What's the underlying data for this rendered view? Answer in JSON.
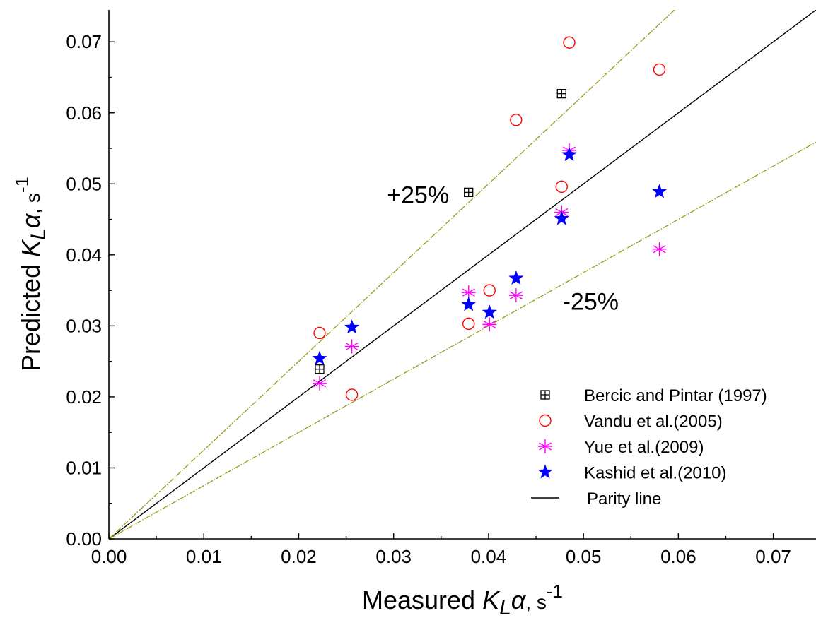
{
  "chart_data": {
    "type": "scatter",
    "title": "",
    "xlabel": {
      "prefix": "Measured ",
      "symbol": "K",
      "subscript": "L",
      "greek": "α",
      "suffix": ", s",
      "exponent": "-1"
    },
    "ylabel": {
      "prefix": "Predicted ",
      "symbol": "K",
      "subscript": "L",
      "greek": "α",
      "suffix": ", s",
      "exponent": "-1"
    },
    "xlim": [
      0,
      0.0745
    ],
    "ylim": [
      0,
      0.0745
    ],
    "x_ticks": [
      "0.00",
      "0.01",
      "0.02",
      "0.03",
      "0.04",
      "0.05",
      "0.06",
      "0.07"
    ],
    "y_ticks": [
      "0.00",
      "0.01",
      "0.02",
      "0.03",
      "0.04",
      "0.05",
      "0.06",
      "0.07"
    ],
    "grid": false,
    "legend_position": "bottom-right",
    "reference_lines": [
      {
        "name": "Parity line",
        "slope": 1.0,
        "color": "#000000",
        "in_legend": true
      },
      {
        "label": "+25%",
        "slope": 1.25,
        "color": "#9a9a1a",
        "in_legend": false
      },
      {
        "label": "-25%",
        "slope": 0.75,
        "color": "#9a9a1a",
        "in_legend": false
      }
    ],
    "annotations": [
      {
        "text": "+25%",
        "x": 0.0293,
        "y": 0.0473
      },
      {
        "text": "-25%",
        "x": 0.0478,
        "y": 0.0323
      }
    ],
    "series": [
      {
        "name": "Bercic and Pintar (1997)",
        "marker": "boxed-plus",
        "color": "#000000",
        "points": [
          [
            0.0222,
            0.0239
          ],
          [
            0.0379,
            0.0488
          ],
          [
            0.0477,
            0.0627
          ]
        ]
      },
      {
        "name": "Vandu et al.(2005)",
        "marker": "circle",
        "color": "#ff0000",
        "points": [
          [
            0.0222,
            0.029
          ],
          [
            0.0256,
            0.0203
          ],
          [
            0.0379,
            0.0303
          ],
          [
            0.0401,
            0.035
          ],
          [
            0.0429,
            0.059
          ],
          [
            0.0477,
            0.0496
          ],
          [
            0.0485,
            0.0699
          ],
          [
            0.058,
            0.0661
          ]
        ]
      },
      {
        "name": "Yue et al.(2009)",
        "marker": "asterisk",
        "color": "#ff00ff",
        "points": [
          [
            0.0222,
            0.0219
          ],
          [
            0.0256,
            0.0271
          ],
          [
            0.0379,
            0.0347
          ],
          [
            0.0401,
            0.0302
          ],
          [
            0.0429,
            0.0343
          ],
          [
            0.0477,
            0.046
          ],
          [
            0.0485,
            0.0547
          ],
          [
            0.058,
            0.0408
          ]
        ]
      },
      {
        "name": "Kashid et al.(2010)",
        "marker": "star",
        "color": "#0000ff",
        "points": [
          [
            0.0222,
            0.0254
          ],
          [
            0.0256,
            0.0298
          ],
          [
            0.0379,
            0.033
          ],
          [
            0.0401,
            0.0319
          ],
          [
            0.0429,
            0.0367
          ],
          [
            0.0477,
            0.0451
          ],
          [
            0.0485,
            0.0541
          ],
          [
            0.058,
            0.0489
          ]
        ]
      }
    ]
  }
}
